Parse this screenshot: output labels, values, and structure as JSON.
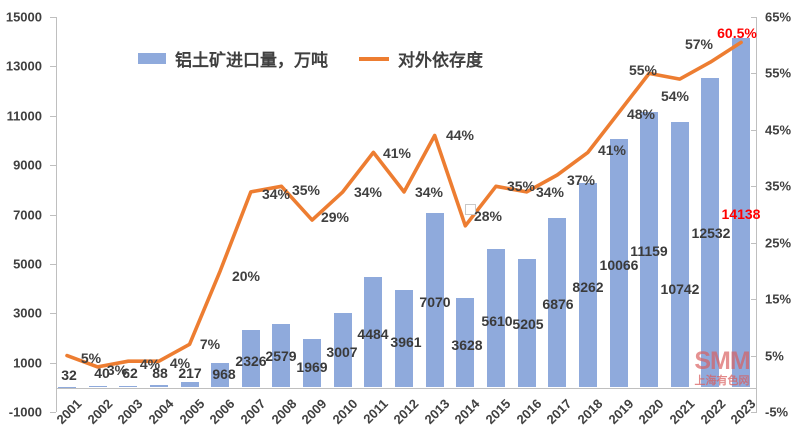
{
  "chart_data": {
    "type": "combo-bar-line",
    "categories": [
      "2001",
      "2002",
      "2003",
      "2004",
      "2005",
      "2006",
      "2007",
      "2008",
      "2009",
      "2010",
      "2011",
      "2012",
      "2013",
      "2014",
      "2015",
      "2016",
      "2017",
      "2018",
      "2019",
      "2020",
      "2021",
      "2022",
      "2023"
    ],
    "series": [
      {
        "name": "铝土矿进口量，万吨",
        "type": "bar",
        "axis": "left",
        "color": "#8FAADC",
        "values": [
          32,
          40,
          62,
          88,
          217,
          968,
          2326,
          2579,
          1969,
          3007,
          4484,
          3961,
          7070,
          3628,
          5610,
          5205,
          6876,
          8262,
          10066,
          11159,
          10742,
          12532,
          14138
        ],
        "labels": [
          "32",
          "40",
          "62",
          "88",
          "217",
          "968",
          "2326",
          "2579",
          "1969",
          "3007",
          "4484",
          "3961",
          "7070",
          "3628",
          "5610",
          "5205",
          "6876",
          "8262",
          "10066",
          "11159",
          "10742",
          "12532",
          "14138"
        ]
      },
      {
        "name": "对外依存度",
        "type": "line",
        "axis": "right",
        "color": "#ED7D31",
        "values": [
          5,
          3,
          4,
          4,
          7,
          20,
          34,
          35,
          29,
          34,
          41,
          34,
          44,
          28,
          35,
          34,
          37,
          41,
          48,
          55,
          54,
          57,
          60.5
        ],
        "labels": [
          "5%",
          "3%",
          "4%",
          "4%",
          "7%",
          "20%",
          "34%",
          "35%",
          "29%",
          "34%",
          "41%",
          "34%",
          "44%",
          "28%",
          "35%",
          "34%",
          "37%",
          "41%",
          "48%",
          "55%",
          "54%",
          "57%",
          "60.5%"
        ]
      }
    ],
    "left_axis": {
      "min": -1000,
      "max": 15000,
      "step": 2000,
      "ticks": [
        "15000",
        "13000",
        "11000",
        "9000",
        "7000",
        "5000",
        "3000",
        "1000",
        "-1000"
      ]
    },
    "right_axis": {
      "min": -5,
      "max": 65,
      "step": 10,
      "ticks": [
        "65%",
        "55%",
        "45%",
        "35%",
        "25%",
        "15%",
        "5%",
        "-5%"
      ]
    },
    "grid": "off",
    "legend_position": "top",
    "highlight_color": "#FF0000",
    "label_color": "#404040"
  },
  "watermark": {
    "line1": "SMM",
    "line2": "上海有色网",
    "color": "#D95E5E"
  }
}
